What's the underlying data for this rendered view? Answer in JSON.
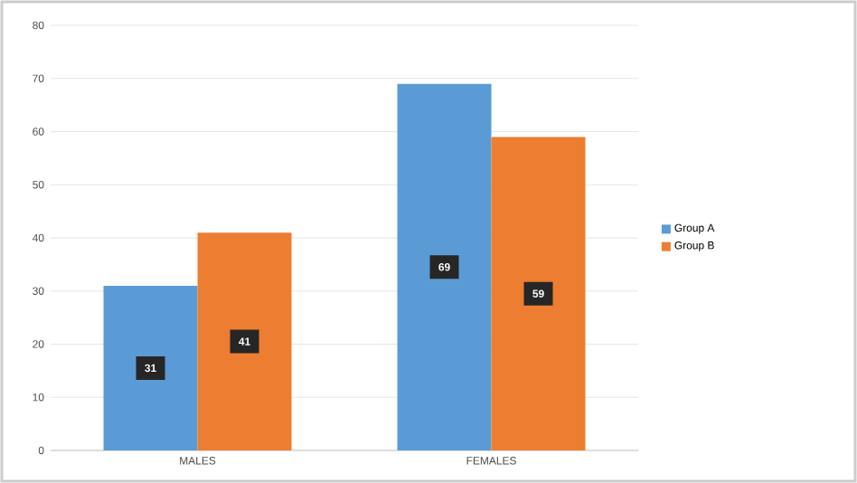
{
  "chart_data": {
    "type": "bar",
    "categories": [
      "MALES",
      "FEMALES"
    ],
    "series": [
      {
        "name": "Group A",
        "color": "#5b9bd5",
        "values": [
          31,
          69
        ]
      },
      {
        "name": "Group B",
        "color": "#ed7d31",
        "values": [
          41,
          59
        ]
      }
    ],
    "ylim": [
      0,
      80
    ],
    "yticks": [
      0,
      10,
      20,
      30,
      40,
      50,
      60,
      70,
      80
    ],
    "grid": "y",
    "legend": "right",
    "data_labels": true
  }
}
